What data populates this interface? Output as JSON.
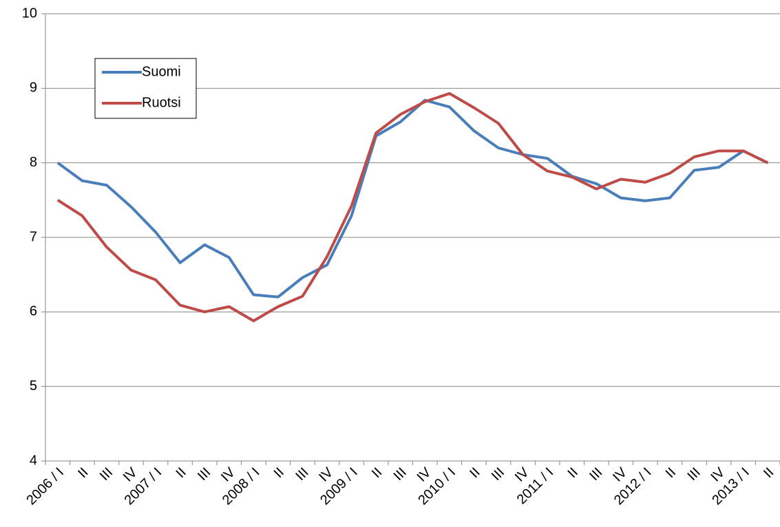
{
  "chart_data": {
    "type": "line",
    "categories": [
      "2006 / I",
      "II",
      "III",
      "IV",
      "2007 / I",
      "II",
      "III",
      "IV",
      "2008 / I",
      "II",
      "III",
      "IV",
      "2009 / I",
      "II",
      "III",
      "IV",
      "2010 / I",
      "II",
      "III",
      "IV",
      "2011 / I",
      "II",
      "III",
      "IV",
      "2012 / I",
      "II",
      "III",
      "IV",
      "2013 / I",
      "II"
    ],
    "series": [
      {
        "name": "Suomi",
        "color": "#4a7ebb",
        "values": [
          8.0,
          7.76,
          7.7,
          7.41,
          7.07,
          6.66,
          6.9,
          6.73,
          6.23,
          6.2,
          6.46,
          6.63,
          7.29,
          8.36,
          8.55,
          8.84,
          8.75,
          8.43,
          8.2,
          8.11,
          8.06,
          7.82,
          7.72,
          7.53,
          7.49,
          7.53,
          7.9,
          7.94,
          8.16,
          8.0
        ]
      },
      {
        "name": "Ruotsi",
        "color": "#be4b48",
        "values": [
          7.5,
          7.29,
          6.87,
          6.56,
          6.43,
          6.09,
          6.0,
          6.07,
          5.88,
          6.07,
          6.21,
          6.74,
          7.42,
          8.4,
          8.65,
          8.82,
          8.93,
          8.74,
          8.53,
          8.11,
          7.89,
          7.81,
          7.65,
          7.78,
          7.74,
          7.86,
          8.08,
          8.16,
          8.16,
          8.0
        ]
      }
    ],
    "ylim": [
      4,
      10
    ],
    "yticks": [
      4,
      5,
      6,
      7,
      8,
      9,
      10
    ],
    "grid": true,
    "legend": "upper left"
  }
}
